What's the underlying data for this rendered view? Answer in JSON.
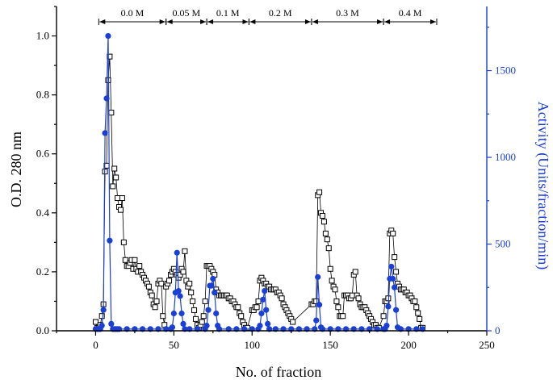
{
  "chart_data": {
    "type": "scatter",
    "xlabel": "No. of fraction",
    "ylabel_left": "O.D. 280 nm",
    "ylabel_right": "Activity (Units/fraction/min)",
    "xlim": [
      -25,
      250
    ],
    "ylim_left": [
      0,
      1.1
    ],
    "ylim_right": [
      0,
      1870
    ],
    "x_ticks": [
      0,
      50,
      100,
      150,
      200,
      250
    ],
    "y_ticks_left": [
      0.0,
      0.2,
      0.4,
      0.6,
      0.8,
      1.0
    ],
    "y_ticks_right": [
      0,
      500,
      1000,
      1500
    ],
    "colors": {
      "od": "#000000",
      "activity": "#1a3fd6"
    },
    "segments": [
      {
        "label": "0.0 M",
        "x_start": 2,
        "x_end": 45
      },
      {
        "label": "0.05 M",
        "x_start": 45,
        "x_end": 71
      },
      {
        "label": "0.1 M",
        "x_start": 71,
        "x_end": 98
      },
      {
        "label": "0.2 M",
        "x_start": 98,
        "x_end": 138
      },
      {
        "label": "0.3 M",
        "x_start": 138,
        "x_end": 184
      },
      {
        "label": "0.4 M",
        "x_start": 184,
        "x_end": 218
      }
    ],
    "series": [
      {
        "name": "O.D. 280 nm",
        "marker": "open-square",
        "axis": "left",
        "points": [
          [
            0,
            0.03
          ],
          [
            1,
            0.01
          ],
          [
            2,
            0.01
          ],
          [
            3,
            0.02
          ],
          [
            4,
            0.05
          ],
          [
            5,
            0.09
          ],
          [
            6,
            0.54
          ],
          [
            7,
            0.56
          ],
          [
            8,
            0.85
          ],
          [
            9,
            0.93
          ],
          [
            10,
            0.74
          ],
          [
            11,
            0.49
          ],
          [
            12,
            0.55
          ],
          [
            13,
            0.52
          ],
          [
            14,
            0.45
          ],
          [
            15,
            0.42
          ],
          [
            16,
            0.41
          ],
          [
            17,
            0.45
          ],
          [
            18,
            0.3
          ],
          [
            19,
            0.24
          ],
          [
            20,
            0.22
          ],
          [
            21,
            0.22
          ],
          [
            22,
            0.23
          ],
          [
            23,
            0.24
          ],
          [
            24,
            0.21
          ],
          [
            25,
            0.24
          ],
          [
            26,
            0.21
          ],
          [
            27,
            0.2
          ],
          [
            28,
            0.22
          ],
          [
            29,
            0.2
          ],
          [
            30,
            0.19
          ],
          [
            31,
            0.18
          ],
          [
            32,
            0.17
          ],
          [
            33,
            0.16
          ],
          [
            34,
            0.15
          ],
          [
            35,
            0.13
          ],
          [
            36,
            0.12
          ],
          [
            37,
            0.09
          ],
          [
            38,
            0.08
          ],
          [
            39,
            0.1
          ],
          [
            40,
            0.16
          ],
          [
            41,
            0.17
          ],
          [
            42,
            0.16
          ],
          [
            43,
            0.05
          ],
          [
            44,
            0.02
          ],
          [
            45,
            0.15
          ],
          [
            46,
            0.16
          ],
          [
            47,
            0.17
          ],
          [
            48,
            0.19
          ],
          [
            49,
            0.2
          ],
          [
            50,
            0.21
          ],
          [
            51,
            0.2
          ],
          [
            52,
            0.19
          ],
          [
            53,
            0.18
          ],
          [
            54,
            0.19
          ],
          [
            55,
            0.21
          ],
          [
            56,
            0.2
          ],
          [
            57,
            0.27
          ],
          [
            58,
            0.17
          ],
          [
            59,
            0.15
          ],
          [
            60,
            0.16
          ],
          [
            61,
            0.13
          ],
          [
            62,
            0.1
          ],
          [
            63,
            0.07
          ],
          [
            64,
            0.04
          ],
          [
            65,
            0.02
          ],
          [
            66,
            0.01
          ],
          [
            67,
            0.02
          ],
          [
            68,
            0.03
          ],
          [
            69,
            0.05
          ],
          [
            70,
            0.1
          ],
          [
            71,
            0.22
          ],
          [
            72,
            0.22
          ],
          [
            73,
            0.22
          ],
          [
            74,
            0.21
          ],
          [
            75,
            0.2
          ],
          [
            76,
            0.19
          ],
          [
            77,
            0.14
          ],
          [
            78,
            0.13
          ],
          [
            79,
            0.12
          ],
          [
            80,
            0.12
          ],
          [
            81,
            0.12
          ],
          [
            82,
            0.12
          ],
          [
            83,
            0.12
          ],
          [
            84,
            0.12
          ],
          [
            85,
            0.11
          ],
          [
            86,
            0.11
          ],
          [
            87,
            0.1
          ],
          [
            88,
            0.1
          ],
          [
            89,
            0.09
          ],
          [
            90,
            0.08
          ],
          [
            91,
            0.08
          ],
          [
            92,
            0.06
          ],
          [
            93,
            0.05
          ],
          [
            94,
            0.03
          ],
          [
            95,
            0.02
          ],
          [
            96,
            0.01
          ],
          [
            97,
            0.01
          ],
          [
            100,
            0.07
          ],
          [
            101,
            0.07
          ],
          [
            102,
            0.08
          ],
          [
            103,
            0.08
          ],
          [
            104,
            0.1
          ],
          [
            105,
            0.17
          ],
          [
            106,
            0.18
          ],
          [
            107,
            0.17
          ],
          [
            108,
            0.16
          ],
          [
            109,
            0.16
          ],
          [
            110,
            0.15
          ],
          [
            111,
            0.15
          ],
          [
            112,
            0.14
          ],
          [
            113,
            0.14
          ],
          [
            114,
            0.14
          ],
          [
            115,
            0.14
          ],
          [
            116,
            0.13
          ],
          [
            117,
            0.13
          ],
          [
            118,
            0.12
          ],
          [
            119,
            0.11
          ],
          [
            120,
            0.09
          ],
          [
            121,
            0.08
          ],
          [
            122,
            0.07
          ],
          [
            123,
            0.06
          ],
          [
            124,
            0.05
          ],
          [
            125,
            0.04
          ],
          [
            126,
            0.03
          ],
          [
            138,
            0.09
          ],
          [
            139,
            0.09
          ],
          [
            140,
            0.1
          ],
          [
            141,
            0.1
          ],
          [
            142,
            0.46
          ],
          [
            143,
            0.47
          ],
          [
            144,
            0.4
          ],
          [
            145,
            0.39
          ],
          [
            146,
            0.37
          ],
          [
            147,
            0.33
          ],
          [
            148,
            0.31
          ],
          [
            149,
            0.28
          ],
          [
            150,
            0.21
          ],
          [
            151,
            0.17
          ],
          [
            152,
            0.15
          ],
          [
            153,
            0.14
          ],
          [
            154,
            0.1
          ],
          [
            155,
            0.08
          ],
          [
            156,
            0.05
          ],
          [
            157,
            0.05
          ],
          [
            158,
            0.05
          ],
          [
            159,
            0.12
          ],
          [
            160,
            0.12
          ],
          [
            161,
            0.12
          ],
          [
            162,
            0.11
          ],
          [
            163,
            0.11
          ],
          [
            164,
            0.12
          ],
          [
            165,
            0.19
          ],
          [
            166,
            0.2
          ],
          [
            167,
            0.12
          ],
          [
            168,
            0.11
          ],
          [
            169,
            0.09
          ],
          [
            170,
            0.08
          ],
          [
            171,
            0.08
          ],
          [
            172,
            0.08
          ],
          [
            173,
            0.07
          ],
          [
            174,
            0.06
          ],
          [
            175,
            0.05
          ],
          [
            176,
            0.04
          ],
          [
            177,
            0.03
          ],
          [
            178,
            0.02
          ],
          [
            179,
            0.02
          ],
          [
            180,
            0.01
          ],
          [
            181,
            0.01
          ],
          [
            184,
            0.05
          ],
          [
            185,
            0.1
          ],
          [
            186,
            0.1
          ],
          [
            187,
            0.11
          ],
          [
            188,
            0.33
          ],
          [
            189,
            0.34
          ],
          [
            190,
            0.33
          ],
          [
            191,
            0.25
          ],
          [
            192,
            0.2
          ],
          [
            193,
            0.16
          ],
          [
            194,
            0.15
          ],
          [
            195,
            0.14
          ],
          [
            196,
            0.14
          ],
          [
            197,
            0.14
          ],
          [
            198,
            0.13
          ],
          [
            199,
            0.13
          ],
          [
            200,
            0.12
          ],
          [
            201,
            0.12
          ],
          [
            202,
            0.11
          ],
          [
            203,
            0.1
          ],
          [
            204,
            0.1
          ],
          [
            205,
            0.08
          ],
          [
            206,
            0.06
          ],
          [
            207,
            0.04
          ],
          [
            208,
            0.01
          ],
          [
            209,
            0.01
          ]
        ]
      },
      {
        "name": "Activity",
        "marker": "filled-circle",
        "axis": "right",
        "points": [
          [
            0,
            10
          ],
          [
            1,
            10
          ],
          [
            2,
            10
          ],
          [
            3,
            10
          ],
          [
            4,
            30
          ],
          [
            5,
            120
          ],
          [
            6,
            1140
          ],
          [
            7,
            1340
          ],
          [
            8,
            1700
          ],
          [
            9,
            520
          ],
          [
            10,
            40
          ],
          [
            11,
            10
          ],
          [
            12,
            10
          ],
          [
            13,
            10
          ],
          [
            14,
            10
          ],
          [
            15,
            10
          ],
          [
            20,
            10
          ],
          [
            25,
            10
          ],
          [
            30,
            10
          ],
          [
            35,
            10
          ],
          [
            40,
            10
          ],
          [
            45,
            10
          ],
          [
            48,
            10
          ],
          [
            49,
            20
          ],
          [
            50,
            100
          ],
          [
            51,
            220
          ],
          [
            52,
            450
          ],
          [
            53,
            230
          ],
          [
            54,
            200
          ],
          [
            55,
            100
          ],
          [
            56,
            40
          ],
          [
            57,
            10
          ],
          [
            60,
            10
          ],
          [
            65,
            10
          ],
          [
            70,
            10
          ],
          [
            71,
            30
          ],
          [
            72,
            120
          ],
          [
            73,
            260
          ],
          [
            74,
            260
          ],
          [
            75,
            300
          ],
          [
            76,
            220
          ],
          [
            77,
            100
          ],
          [
            78,
            30
          ],
          [
            79,
            10
          ],
          [
            85,
            10
          ],
          [
            90,
            10
          ],
          [
            95,
            10
          ],
          [
            100,
            10
          ],
          [
            104,
            10
          ],
          [
            105,
            30
          ],
          [
            106,
            100
          ],
          [
            107,
            180
          ],
          [
            108,
            230
          ],
          [
            109,
            120
          ],
          [
            110,
            40
          ],
          [
            111,
            10
          ],
          [
            115,
            10
          ],
          [
            120,
            10
          ],
          [
            125,
            10
          ],
          [
            130,
            10
          ],
          [
            135,
            10
          ],
          [
            140,
            10
          ],
          [
            141,
            60
          ],
          [
            142,
            310
          ],
          [
            143,
            150
          ],
          [
            144,
            20
          ],
          [
            145,
            10
          ],
          [
            150,
            10
          ],
          [
            155,
            10
          ],
          [
            160,
            10
          ],
          [
            165,
            10
          ],
          [
            170,
            10
          ],
          [
            175,
            10
          ],
          [
            180,
            10
          ],
          [
            184,
            10
          ],
          [
            185,
            10
          ],
          [
            186,
            30
          ],
          [
            187,
            140
          ],
          [
            188,
            300
          ],
          [
            189,
            370
          ],
          [
            190,
            300
          ],
          [
            191,
            250
          ],
          [
            192,
            120
          ],
          [
            193,
            20
          ],
          [
            195,
            10
          ],
          [
            200,
            10
          ],
          [
            205,
            10
          ],
          [
            209,
            10
          ]
        ]
      }
    ]
  }
}
